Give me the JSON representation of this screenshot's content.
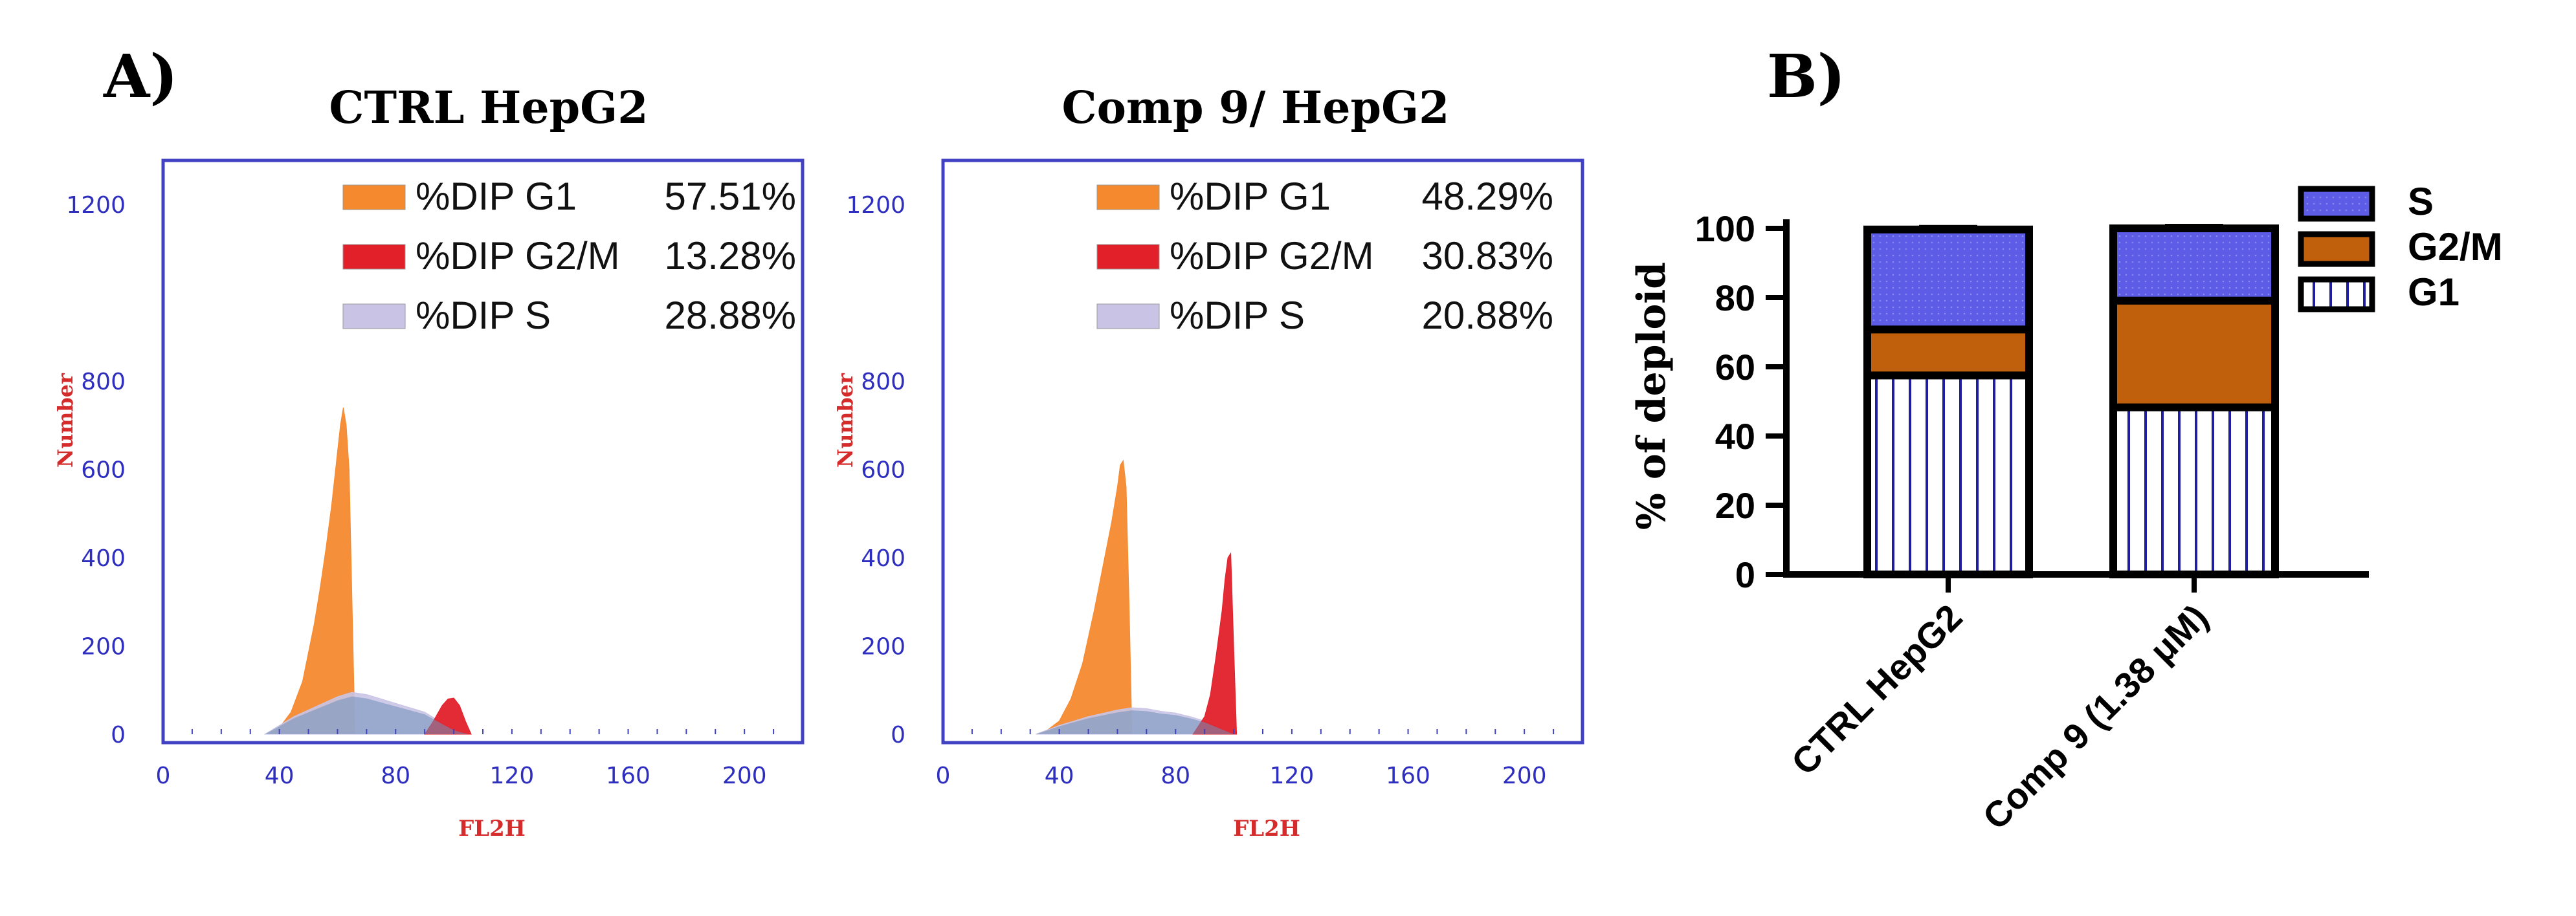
{
  "panels": {
    "a_label": "A)",
    "b_label": "B)"
  },
  "chart_data": [
    {
      "type": "area",
      "title": "CTRL HepG2",
      "xlabel": "FL2H",
      "ylabel": "Number",
      "xlim": [
        0,
        220
      ],
      "ylim": [
        0,
        1300
      ],
      "xticks": [
        0,
        40,
        80,
        120,
        160,
        200
      ],
      "yticks": [
        0,
        200,
        400,
        600,
        800,
        1200
      ],
      "legend": [
        {
          "label": "%DIP G1",
          "value": "57.51%",
          "color": "#f5892e"
        },
        {
          "label": "%DIP G2/M",
          "value": "13.28%",
          "color": "#e2202a"
        },
        {
          "label": "%DIP S",
          "value": "28.88%",
          "color": "#c9c4e6"
        }
      ],
      "series": [
        {
          "name": "G1",
          "color": "#f5892e",
          "x": [
            36,
            40,
            44,
            48,
            52,
            54,
            56,
            58,
            60,
            61,
            62,
            63,
            64,
            65,
            66
          ],
          "values": [
            0,
            15,
            50,
            120,
            250,
            330,
            420,
            520,
            640,
            700,
            740,
            700,
            600,
            300,
            0
          ]
        },
        {
          "name": "S",
          "color": "#c9c4e6",
          "x": [
            35,
            45,
            55,
            60,
            65,
            70,
            75,
            80,
            85,
            90,
            95,
            100,
            105
          ],
          "values": [
            0,
            40,
            70,
            85,
            95,
            90,
            80,
            70,
            60,
            50,
            30,
            10,
            0
          ]
        },
        {
          "name": "G2/M",
          "color": "#e2202a",
          "x": [
            90,
            93,
            96,
            98,
            100,
            102,
            104,
            106
          ],
          "values": [
            0,
            30,
            65,
            80,
            82,
            65,
            30,
            0
          ]
        }
      ]
    },
    {
      "type": "area",
      "title": "Comp 9/ HepG2",
      "xlabel": "FL2H",
      "ylabel": "Number",
      "xlim": [
        0,
        220
      ],
      "ylim": [
        0,
        1300
      ],
      "xticks": [
        0,
        40,
        80,
        120,
        160,
        200
      ],
      "yticks": [
        0,
        200,
        400,
        600,
        800,
        1200
      ],
      "legend": [
        {
          "label": "%DIP G1",
          "value": "48.29%",
          "color": "#f5892e"
        },
        {
          "label": "%DIP G2/M",
          "value": "30.83%",
          "color": "#e2202a"
        },
        {
          "label": "%DIP S",
          "value": "20.88%",
          "color": "#c9c4e6"
        }
      ],
      "series": [
        {
          "name": "G1",
          "color": "#f5892e",
          "x": [
            32,
            36,
            40,
            44,
            48,
            52,
            55,
            58,
            60,
            61,
            62,
            63,
            64,
            65
          ],
          "values": [
            0,
            10,
            30,
            80,
            160,
            280,
            380,
            480,
            560,
            610,
            620,
            560,
            300,
            0
          ]
        },
        {
          "name": "S",
          "color": "#c9c4e6",
          "x": [
            32,
            40,
            50,
            60,
            65,
            70,
            75,
            80,
            85,
            90,
            95,
            100
          ],
          "values": [
            0,
            20,
            40,
            55,
            60,
            58,
            52,
            48,
            40,
            30,
            15,
            0
          ]
        },
        {
          "name": "G2/M",
          "color": "#e2202a",
          "x": [
            86,
            90,
            92,
            94,
            96,
            97,
            98,
            99,
            100,
            101
          ],
          "values": [
            0,
            40,
            90,
            180,
            280,
            350,
            400,
            410,
            200,
            0
          ]
        }
      ]
    },
    {
      "type": "bar",
      "stacked": true,
      "title": "",
      "xlabel": "",
      "ylabel": "% of deploid",
      "ylim": [
        0,
        100
      ],
      "yticks": [
        0,
        20,
        40,
        60,
        80,
        100
      ],
      "categories": [
        "CTRL HepG2",
        "Comp 9 (1.38 μM)"
      ],
      "series": [
        {
          "name": "G1",
          "color": "#1f1f9e",
          "pattern": "vertical-lines",
          "values": [
            57.51,
            48.29
          ]
        },
        {
          "name": "G2/M",
          "color": "#c0600d",
          "pattern": "solid",
          "values": [
            13.28,
            30.83
          ]
        },
        {
          "name": "S",
          "color": "#5c5ce6",
          "pattern": "dots",
          "values": [
            28.88,
            20.88
          ]
        }
      ],
      "legend_order": [
        "S",
        "G2/M",
        "G1"
      ],
      "legend_position": "top-right"
    }
  ]
}
